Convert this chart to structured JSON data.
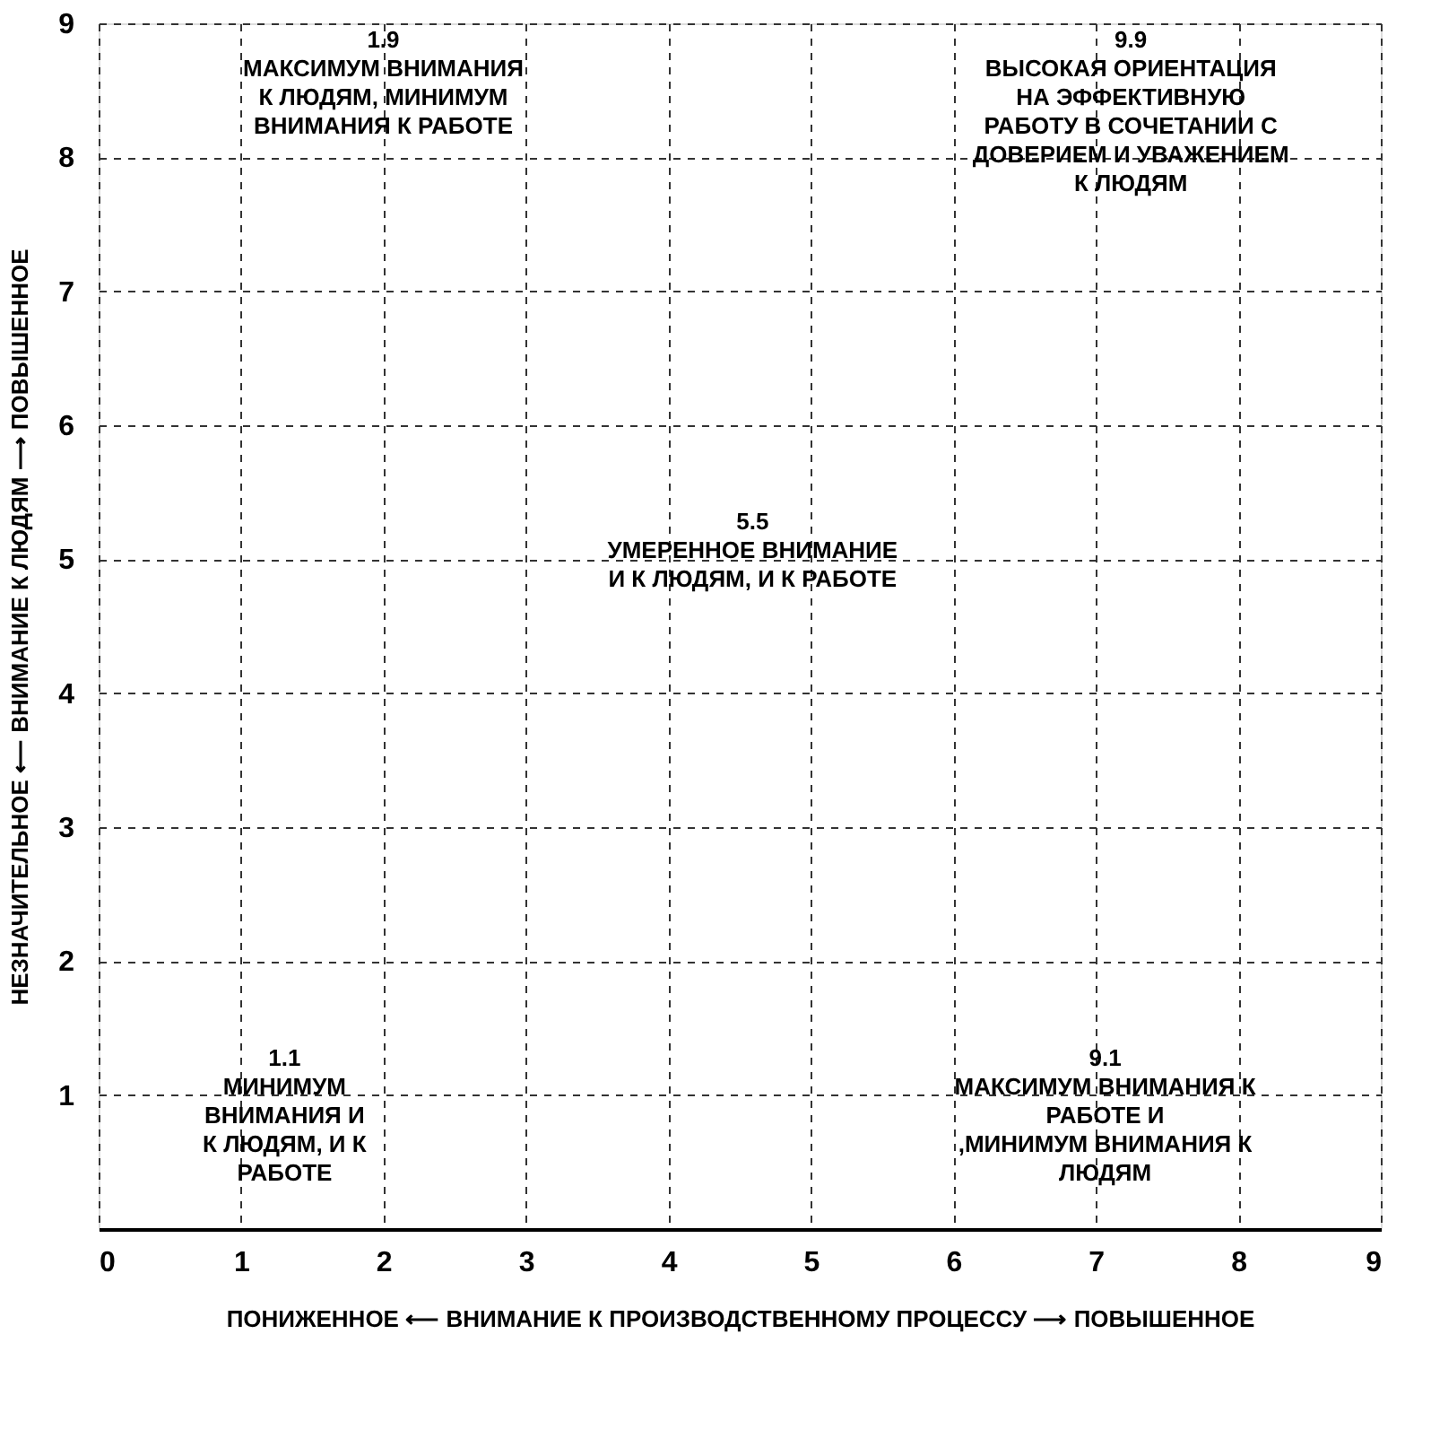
{
  "chart_data": {
    "type": "scatter",
    "xlabel": "ПОНИЖЕННОЕ ⟵  ВНИМАНИЕ К ПРОИЗВОДСТВЕННОМУ ПРОЦЕССУ  ⟶ ПОВЫШЕННОЕ",
    "ylabel": "НЕЗНАЧИТЕЛЬНОЕ ⟵  ВНИМАНИЕ К ЛЮДЯМ  ⟶ ПОВЫШЕННОЕ",
    "xlim": [
      0,
      9
    ],
    "ylim": [
      0,
      9
    ],
    "xticks": [
      0,
      1,
      2,
      3,
      4,
      5,
      6,
      7,
      8,
      9
    ],
    "yticks": [
      1,
      2,
      3,
      4,
      5,
      6,
      7,
      8,
      9
    ],
    "grid": true,
    "annotations": [
      "1.9\nМАКСИМУМ ВНИМАНИЯ\nК ЛЮДЯМ, МИНИМУМ\nВНИМАНИЯ К РАБОТЕ",
      "9.9\nВЫСОКАЯ ОРИЕНТАЦИЯ\nНА ЭФФЕКТИВНУЮ\nРАБОТУ В СОЧЕТАНИИ С\nДОВЕРИЕМ И УВАЖЕНИЕМ\nК ЛЮДЯМ",
      "5.5\nУМЕРЕННОЕ ВНИМАНИЕ\nИ К ЛЮДЯМ, И К РАБОТЕ",
      "1.1\nМИНИМУМ\nВНИМАНИЯ И\nК ЛЮДЯМ, И К\nРАБОТЕ",
      "9.1\nМАКСИМУМ ВНИМАНИЯ К\nРАБОТЕ И\n,МИНИМУМ ВНИМАНИЯ К\nЛЮДЯМ"
    ]
  }
}
